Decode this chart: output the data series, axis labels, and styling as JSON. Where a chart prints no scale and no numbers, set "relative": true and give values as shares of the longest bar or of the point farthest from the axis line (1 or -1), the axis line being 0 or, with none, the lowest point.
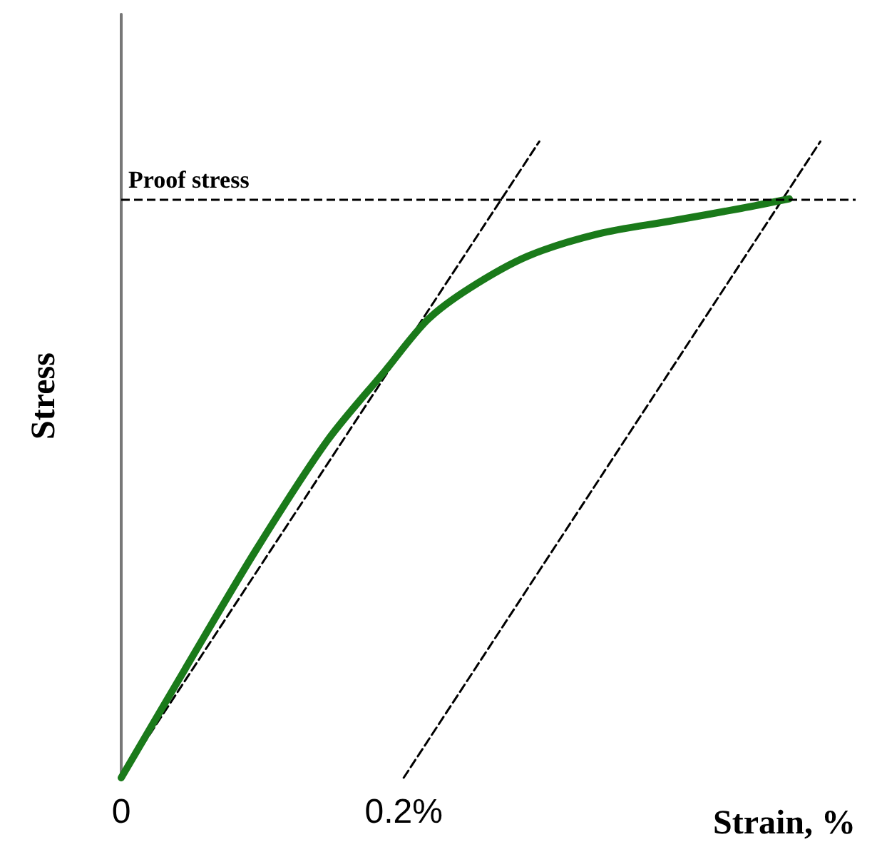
{
  "chart_data": {
    "type": "line",
    "relative": true,
    "xlabel": "Strain, %",
    "ylabel": "Stress",
    "xlim": [
      0,
      0.52
    ],
    "xticks": [
      0,
      {
        "value": 0.2,
        "label": "0.2%"
      }
    ],
    "series": [
      {
        "color": "#1a7a1a",
        "x": [
          0,
          0.045,
          0.096,
          0.146,
          0.187,
          0.217,
          0.247,
          0.288,
          0.338,
          0.389,
          0.439,
          0.473
        ],
        "values": [
          0,
          0.17,
          0.36,
          0.53,
          0.64,
          0.72,
          0.77,
          0.82,
          0.855,
          0.875,
          0.895,
          0.91
        ]
      },
      {
        "color": "#000000",
        "line_style": "dashed",
        "x": [
          0,
          0.296
        ],
        "values": [
          0,
          1
        ]
      },
      {
        "color": "#000000",
        "line_style": "dashed",
        "x": [
          0.2,
          0.495
        ],
        "values": [
          0,
          1
        ]
      }
    ],
    "ref_lines": [
      {
        "axis": "y",
        "value": 0.91,
        "label": "Proof stress",
        "color": "#000000",
        "line_style": "dashed"
      }
    ],
    "grid": false,
    "marker": "none",
    "line_style": "solid"
  }
}
